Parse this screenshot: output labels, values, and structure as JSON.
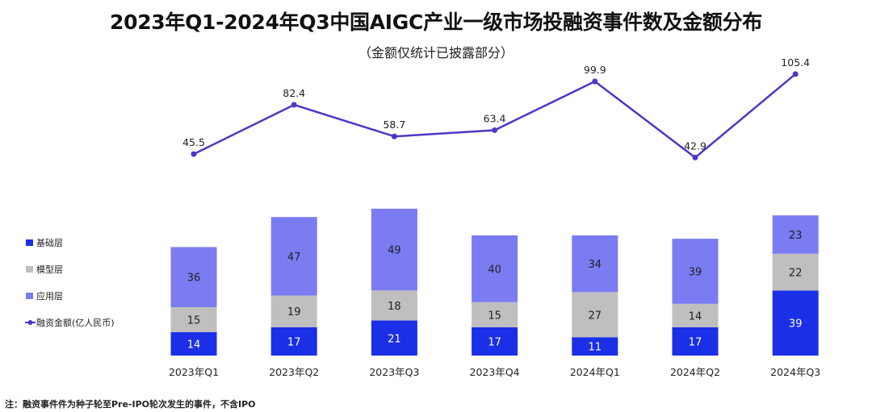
{
  "title": "2023年Q1-2024年Q3中国AIGC产业一级市场投融资事件数及金额分布",
  "subtitle": "（金额仅统计已披露部分）",
  "footnote": "注：融资事件件为种子轮至Pre-IPO轮次发生的事件，不含IPO",
  "colors": {
    "foundation": "#1b2fe6",
    "model": "#bfbfbf",
    "application": "#7b7bf2",
    "amount_line": "#4a38c8"
  },
  "chart_data": {
    "type": "bar",
    "stacked": true,
    "categories": [
      "2023年Q1",
      "2023年Q2",
      "2023年Q3",
      "2023年Q4",
      "2024年Q1",
      "2024年Q2",
      "2024年Q3"
    ],
    "series": [
      {
        "name": "基础层",
        "values": [
          14,
          17,
          21,
          17,
          11,
          17,
          39
        ]
      },
      {
        "name": "模型层",
        "values": [
          15,
          19,
          18,
          15,
          27,
          14,
          22
        ]
      },
      {
        "name": "应用层",
        "values": [
          36,
          47,
          49,
          40,
          34,
          39,
          23
        ]
      }
    ],
    "line_series": {
      "name": "融资金额(亿人民币)",
      "type": "line",
      "values": [
        45.5,
        82.4,
        58.7,
        63.4,
        99.9,
        42.9,
        105.4
      ]
    },
    "legend_position": "left",
    "grid": false
  }
}
